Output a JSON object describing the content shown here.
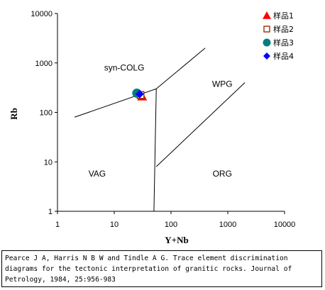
{
  "chart_data": {
    "type": "scatter",
    "title": "",
    "xlabel": "Y+Nb",
    "ylabel": "Rb",
    "xscale": "log",
    "yscale": "log",
    "xlim": [
      1,
      10000
    ],
    "ylim": [
      1,
      10000
    ],
    "grid": false,
    "legend_position": "top-right",
    "x_tick_labels": [
      "1",
      "10",
      "100",
      "1000",
      "10000"
    ],
    "y_tick_labels": [
      "1",
      "10",
      "100",
      "1000",
      "10000"
    ],
    "series": [
      {
        "name": "样品1",
        "marker": "triangle",
        "color": "#ff0000",
        "x": [
          31
        ],
        "y": [
          210
        ]
      },
      {
        "name": "样品2",
        "marker": "square-open",
        "color": "#993300",
        "x": [
          29
        ],
        "y": [
          225
        ]
      },
      {
        "name": "样品3",
        "marker": "circle",
        "color": "#008080",
        "x": [
          25
        ],
        "y": [
          245
        ]
      },
      {
        "name": "样品4",
        "marker": "diamond",
        "color": "#0000ff",
        "x": [
          28
        ],
        "y": [
          235
        ]
      }
    ],
    "boundaries": [
      {
        "x": [
          2,
          55
        ],
        "y": [
          80,
          300
        ]
      },
      {
        "x": [
          55,
          400
        ],
        "y": [
          300,
          2000
        ]
      },
      {
        "x": [
          55,
          50
        ],
        "y": [
          300,
          1
        ]
      },
      {
        "x": [
          55,
          2000
        ],
        "y": [
          8,
          400
        ]
      }
    ],
    "annotations": [
      {
        "text": "syn-COLG",
        "x": 15,
        "y": 700
      },
      {
        "text": "WPG",
        "x": 800,
        "y": 330
      },
      {
        "text": "VAG",
        "x": 5,
        "y": 5
      },
      {
        "text": "ORG",
        "x": 800,
        "y": 5
      }
    ]
  },
  "citation": "Pearce J A, Harris N B W and Tindle A G. Trace element discrimination diagrams for the tectonic interpretation of granitic rocks. Journal of Petrology, 1984, 25:956-983"
}
